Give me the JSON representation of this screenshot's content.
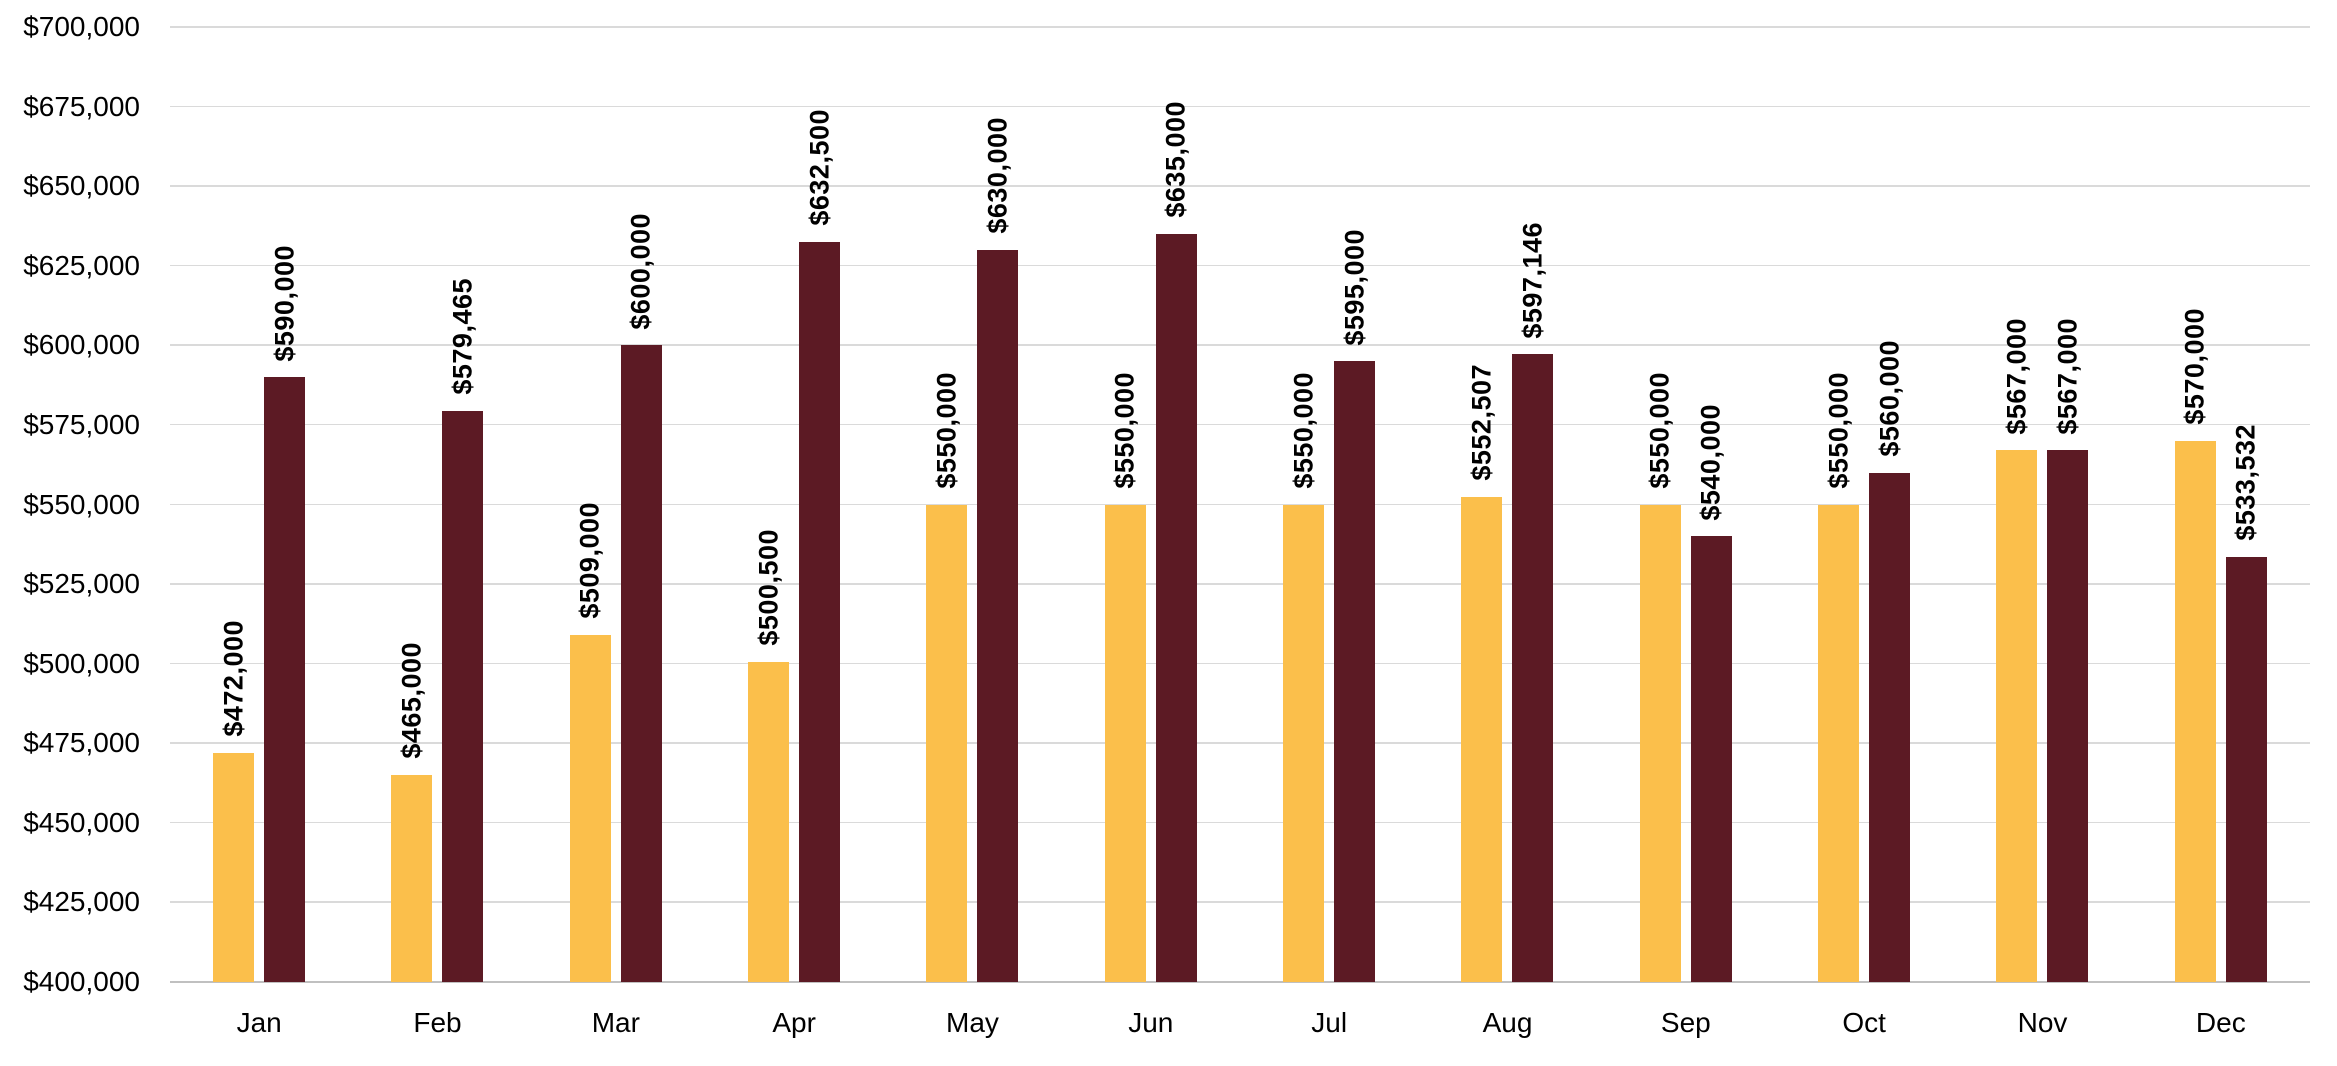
{
  "style": {
    "background": "#FFFFFF",
    "gridline_color": "#DADADA",
    "axis_line_color": "#C0C0C0",
    "text_color": "#000000",
    "series1_color": "#FBBF4B",
    "series2_color": "#5C1A24"
  },
  "chart_data": {
    "type": "bar",
    "title": "",
    "categories": [
      "Jan",
      "Feb",
      "Mar",
      "Apr",
      "May",
      "Jun",
      "Jul",
      "Aug",
      "Sep",
      "Oct",
      "Nov",
      "Dec"
    ],
    "series": [
      {
        "color": "#FBBF4B",
        "values": [
          472000,
          465000,
          509000,
          500500,
          550000,
          550000,
          550000,
          552507,
          550000,
          550000,
          567000,
          570000
        ],
        "labels": [
          "$472,000",
          "$465,000",
          "$509,000",
          "$500,500",
          "$550,000",
          "$550,000",
          "$550,000",
          "$552,507",
          "$550,000",
          "$550,000",
          "$567,000",
          "$570,000"
        ]
      },
      {
        "color": "#5C1A24",
        "values": [
          590000,
          579465,
          600000,
          632500,
          630000,
          635000,
          595000,
          597146,
          540000,
          560000,
          567000,
          533532
        ],
        "labels": [
          "$590,000",
          "$579,465",
          "$600,000",
          "$632,500",
          "$630,000",
          "$635,000",
          "$595,000",
          "$597,146",
          "$540,000",
          "$560,000",
          "$567,000",
          "$533,532"
        ]
      }
    ],
    "ylim": [
      400000,
      700000
    ],
    "ytick_step": 25000,
    "ytick_labels": [
      "$400,000",
      "$425,000",
      "$450,000",
      "$475,000",
      "$500,000",
      "$525,000",
      "$550,000",
      "$575,000",
      "$600,000",
      "$625,000",
      "$650,000",
      "$675,000",
      "$700,000"
    ],
    "grid": true,
    "legend_position": "none",
    "data_label_rotation": -90
  }
}
